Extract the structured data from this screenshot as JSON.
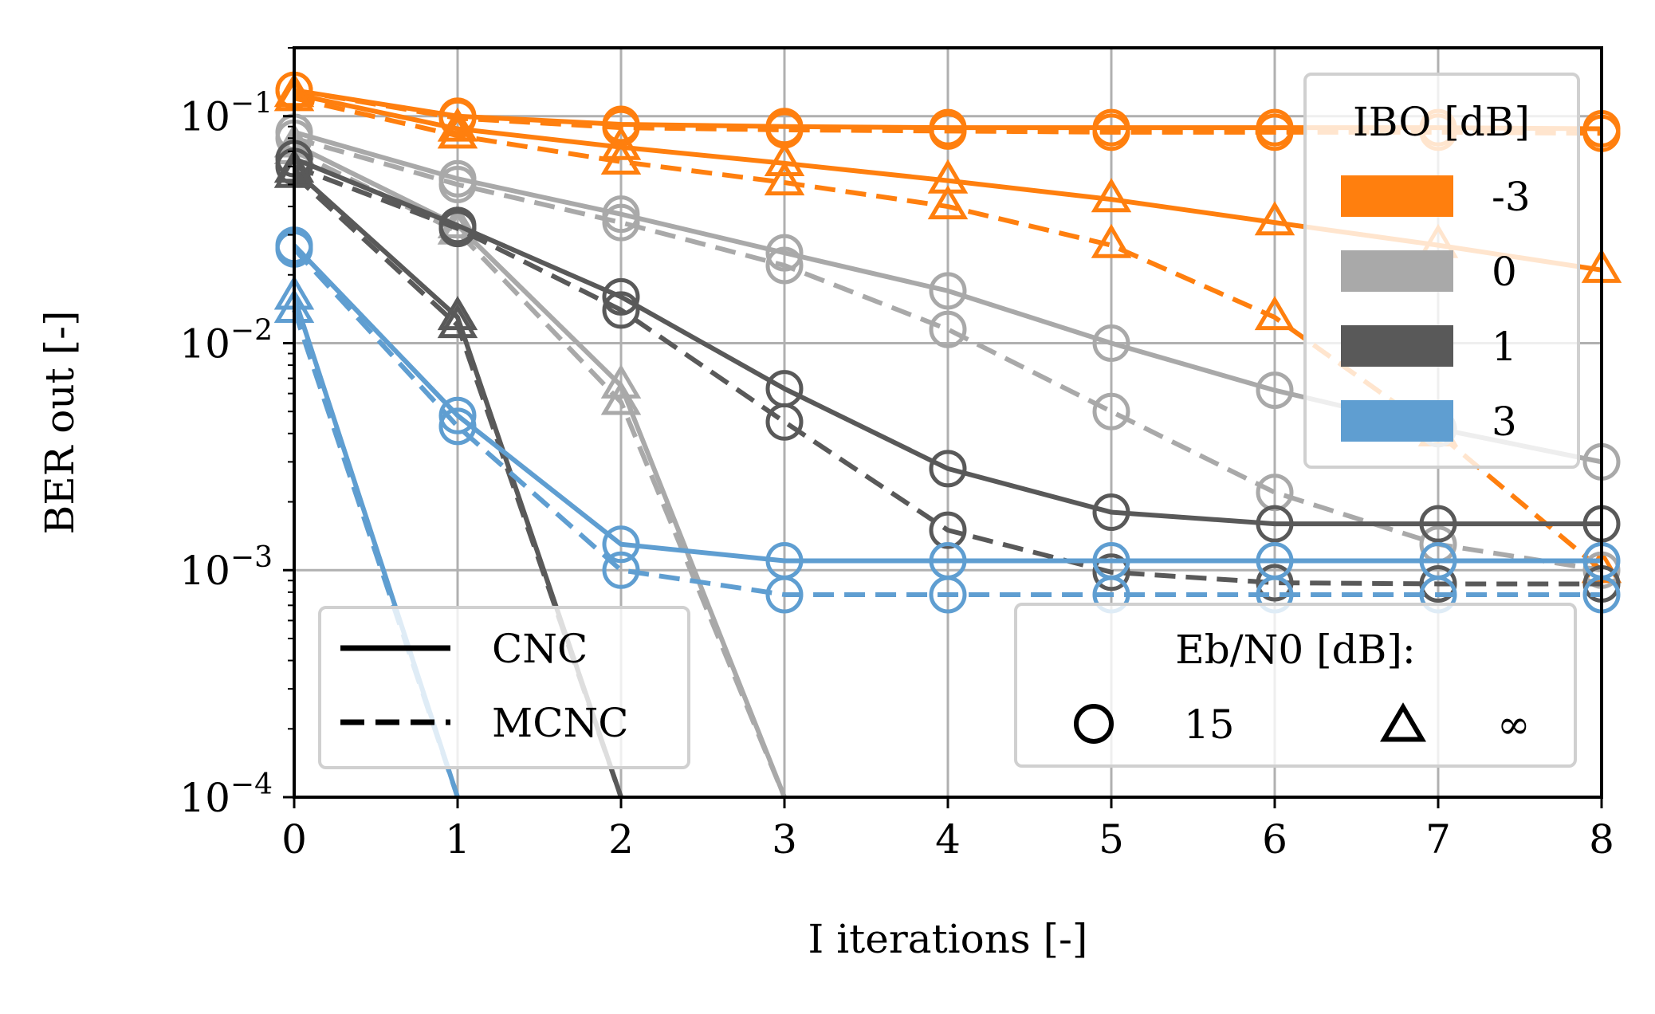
{
  "chart_data": {
    "type": "line",
    "xlabel": "I iterations [-]",
    "ylabel": "BER out [-]",
    "x": [
      0,
      1,
      2,
      3,
      4,
      5,
      6,
      7,
      8
    ],
    "xlim": [
      0,
      8
    ],
    "ylim": [
      0.0001,
      0.2
    ],
    "yscale": "log",
    "grid": true,
    "x_ticks": [
      "0",
      "1",
      "2",
      "3",
      "4",
      "5",
      "6",
      "7",
      "8"
    ],
    "y_ticks": [
      {
        "value": 0.1,
        "mantissa": "10",
        "exponent": "−1"
      },
      {
        "value": 0.01,
        "mantissa": "10",
        "exponent": "−2"
      },
      {
        "value": 0.001,
        "mantissa": "10",
        "exponent": "−3"
      },
      {
        "value": 0.0001,
        "mantissa": "10",
        "exponent": "−4"
      }
    ],
    "colors": {
      "-3": "#ff7f0e",
      "0": "#a9a9a9",
      "1": "#595959",
      "3": "#5f9ed1"
    },
    "series": [
      {
        "ibo": "-3",
        "ebn0": "15",
        "scheme": "CNC",
        "marker": "circle",
        "dash": false,
        "y": [
          0.13,
          0.1,
          0.092,
          0.09,
          0.089,
          0.089,
          0.089,
          0.089,
          0.088
        ]
      },
      {
        "ibo": "-3",
        "ebn0": "15",
        "scheme": "MCNC",
        "marker": "circle",
        "dash": true,
        "y": [
          0.13,
          0.098,
          0.089,
          0.087,
          0.086,
          0.085,
          0.085,
          0.085,
          0.084
        ]
      },
      {
        "ibo": "-3",
        "ebn0": "∞",
        "scheme": "CNC",
        "marker": "triangle",
        "dash": false,
        "y": [
          0.125,
          0.088,
          0.073,
          0.062,
          0.052,
          0.043,
          0.034,
          0.027,
          0.021
        ]
      },
      {
        "ibo": "-3",
        "ebn0": "∞",
        "scheme": "MCNC",
        "marker": "triangle",
        "dash": true,
        "y": [
          0.12,
          0.082,
          0.063,
          0.051,
          0.04,
          0.027,
          0.013,
          0.004,
          0.001
        ]
      },
      {
        "ibo": "0",
        "ebn0": "15",
        "scheme": "CNC",
        "marker": "circle",
        "dash": false,
        "y": [
          0.085,
          0.053,
          0.037,
          0.025,
          0.017,
          0.01,
          0.0062,
          0.0042,
          0.003
        ]
      },
      {
        "ibo": "0",
        "ebn0": "15",
        "scheme": "MCNC",
        "marker": "circle",
        "dash": true,
        "y": [
          0.08,
          0.05,
          0.034,
          0.022,
          0.0115,
          0.005,
          0.0022,
          0.0013,
          0.001
        ]
      },
      {
        "ibo": "0",
        "ebn0": "∞",
        "scheme": "CNC",
        "marker": "triangle",
        "dash": false,
        "y": [
          0.075,
          0.033,
          0.0065,
          0.0001,
          null,
          null,
          null,
          null,
          null
        ]
      },
      {
        "ibo": "0",
        "ebn0": "∞",
        "scheme": "MCNC",
        "marker": "triangle",
        "dash": true,
        "y": [
          0.07,
          0.031,
          0.0055,
          0.0001,
          null,
          null,
          null,
          null,
          null
        ]
      },
      {
        "ibo": "1",
        "ebn0": "15",
        "scheme": "CNC",
        "marker": "circle",
        "dash": false,
        "y": [
          0.065,
          0.033,
          0.016,
          0.0063,
          0.0028,
          0.0018,
          0.0016,
          0.0016,
          0.0016
        ]
      },
      {
        "ibo": "1",
        "ebn0": "15",
        "scheme": "MCNC",
        "marker": "circle",
        "dash": true,
        "y": [
          0.06,
          0.032,
          0.014,
          0.0045,
          0.0015,
          0.00098,
          0.00088,
          0.00087,
          0.00087
        ]
      },
      {
        "ibo": "1",
        "ebn0": "∞",
        "scheme": "CNC",
        "marker": "triangle",
        "dash": false,
        "y": [
          0.058,
          0.013,
          0.0001,
          null,
          null,
          null,
          null,
          null,
          null
        ]
      },
      {
        "ibo": "1",
        "ebn0": "∞",
        "scheme": "MCNC",
        "marker": "triangle",
        "dash": true,
        "y": [
          0.055,
          0.012,
          0.0001,
          null,
          null,
          null,
          null,
          null,
          null
        ]
      },
      {
        "ibo": "3",
        "ebn0": "15",
        "scheme": "CNC",
        "marker": "circle",
        "dash": false,
        "y": [
          0.027,
          0.0048,
          0.0013,
          0.0011,
          0.0011,
          0.0011,
          0.0011,
          0.0011,
          0.0011
        ]
      },
      {
        "ibo": "3",
        "ebn0": "15",
        "scheme": "MCNC",
        "marker": "circle",
        "dash": true,
        "y": [
          0.026,
          0.0043,
          0.001,
          0.00078,
          0.00078,
          0.00078,
          0.00078,
          0.00078,
          0.00078
        ]
      },
      {
        "ibo": "3",
        "ebn0": "∞",
        "scheme": "CNC",
        "marker": "triangle",
        "dash": false,
        "y": [
          0.016,
          0.0001,
          null,
          null,
          null,
          null,
          null,
          null,
          null
        ]
      },
      {
        "ibo": "3",
        "ebn0": "∞",
        "scheme": "MCNC",
        "marker": "triangle",
        "dash": true,
        "y": [
          0.014,
          0.0001,
          null,
          null,
          null,
          null,
          null,
          null,
          null
        ]
      }
    ],
    "legends": {
      "ibo": {
        "title": "IBO [dB]",
        "placement": "top-right",
        "items": [
          "-3",
          "0",
          "1",
          "3"
        ]
      },
      "scheme": {
        "placement": "bottom-left",
        "items": [
          {
            "label": "CNC",
            "dash": false
          },
          {
            "label": "MCNC",
            "dash": true
          }
        ]
      },
      "ebn0": {
        "title": "Eb/N0 [dB]:",
        "placement": "bottom-right",
        "items": [
          {
            "label": "15",
            "marker": "circle"
          },
          {
            "label": "∞",
            "marker": "triangle"
          }
        ]
      }
    }
  }
}
